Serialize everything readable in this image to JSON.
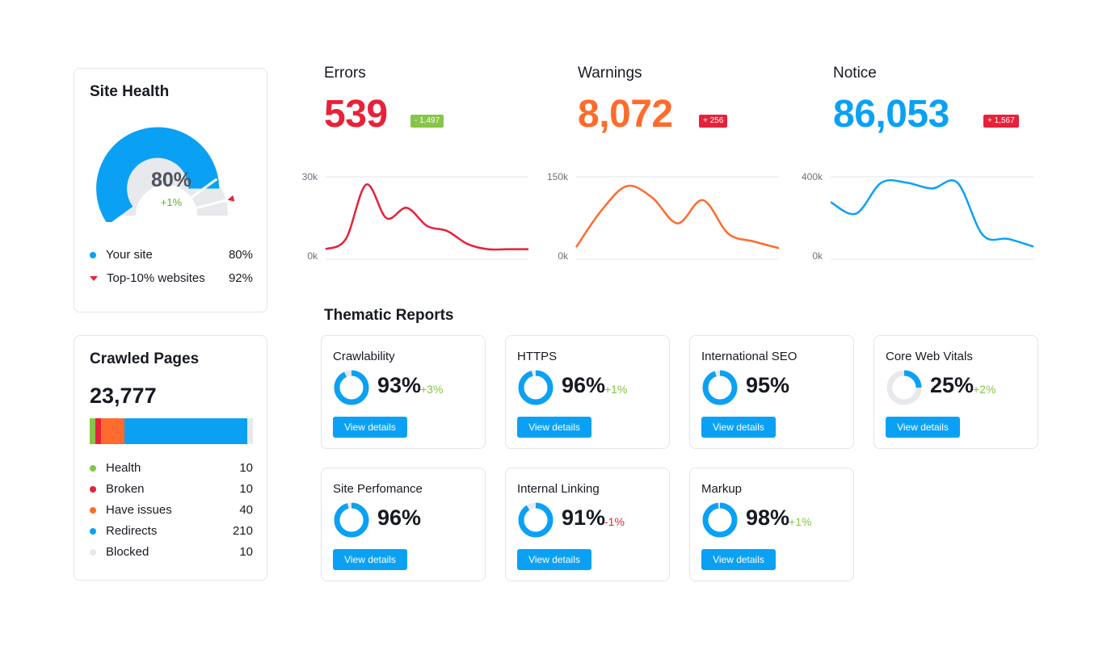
{
  "site_health": {
    "title": "Site Health",
    "score": "80%",
    "change": "+1%",
    "score_fraction": 0.8,
    "top10_fraction": 0.92,
    "legend": [
      {
        "label": "Your site",
        "value": "80%",
        "color": "#0aa1f5",
        "marker": "dot"
      },
      {
        "label": "Top-10% websites",
        "value": "92%",
        "color": "#e8213a",
        "marker": "triangle"
      }
    ]
  },
  "crawled_pages": {
    "title": "Crawled Pages",
    "total": "23,777",
    "items": [
      {
        "label": "Health",
        "value": "10",
        "count": 10,
        "color": "#86c547"
      },
      {
        "label": "Broken",
        "value": "10",
        "count": 10,
        "color": "#e8213a"
      },
      {
        "label": "Have issues",
        "value": "40",
        "count": 40,
        "color": "#ff6b2c"
      },
      {
        "label": "Redirects",
        "value": "210",
        "count": 210,
        "color": "#0aa1f5"
      },
      {
        "label": "Blocked",
        "value": "10",
        "count": 10,
        "color": "#e8e9ec"
      }
    ]
  },
  "metrics": [
    {
      "label": "Errors",
      "value": "539",
      "color": "#e8213a",
      "badge": "- 1,497",
      "badge_color": "#86c547",
      "ymax": "30k",
      "ymin": "0k"
    },
    {
      "label": "Warnings",
      "value": "8,072",
      "color": "#ff6b2c",
      "badge": "+ 256",
      "badge_color": "#e8213a",
      "ymax": "150k",
      "ymin": "0k"
    },
    {
      "label": "Notice",
      "value": "86,053",
      "color": "#0aa1f5",
      "badge": "+ 1,567",
      "badge_color": "#e8213a",
      "ymax": "400k",
      "ymin": "0k"
    }
  ],
  "chart_data": [
    {
      "type": "line",
      "title": "",
      "ylim": [
        0,
        30
      ],
      "y_unit": "k",
      "values": [
        2,
        6,
        27,
        14,
        18,
        11,
        9,
        4,
        2,
        2,
        2
      ],
      "color": "#e8213a"
    },
    {
      "type": "line",
      "title": "",
      "ylim": [
        0,
        150
      ],
      "y_unit": "k",
      "values": [
        14,
        85,
        132,
        110,
        60,
        105,
        40,
        25,
        12
      ],
      "color": "#ff6b2c"
    },
    {
      "type": "line",
      "title": "",
      "ylim": [
        0,
        400
      ],
      "y_unit": "k",
      "values": [
        270,
        210,
        370,
        370,
        340,
        370,
        100,
        80,
        40
      ],
      "color": "#0aa1f5"
    }
  ],
  "thematic": {
    "title": "Thematic Reports",
    "button_label": "View details",
    "reports": [
      {
        "title": "Crawlability",
        "value": "93%",
        "fraction": 0.93,
        "change": "+3%",
        "change_color": "#86c547"
      },
      {
        "title": "HTTPS",
        "value": "96%",
        "fraction": 0.96,
        "change": "+1%",
        "change_color": "#86c547"
      },
      {
        "title": "International SEO",
        "value": "95%",
        "fraction": 0.95,
        "change": "",
        "change_color": "#86c547"
      },
      {
        "title": "Core Web Vitals",
        "value": "25%",
        "fraction": 0.25,
        "change": "+2%",
        "change_color": "#86c547"
      },
      {
        "title": "Site Perfomance",
        "value": "96%",
        "fraction": 0.96,
        "change": "",
        "change_color": "#86c547"
      },
      {
        "title": "Internal Linking",
        "value": "91%",
        "fraction": 0.91,
        "change": "-1%",
        "change_color": "#e8213a"
      },
      {
        "title": "Markup",
        "value": "98%",
        "fraction": 0.98,
        "change": "+1%",
        "change_color": "#86c547"
      }
    ]
  }
}
